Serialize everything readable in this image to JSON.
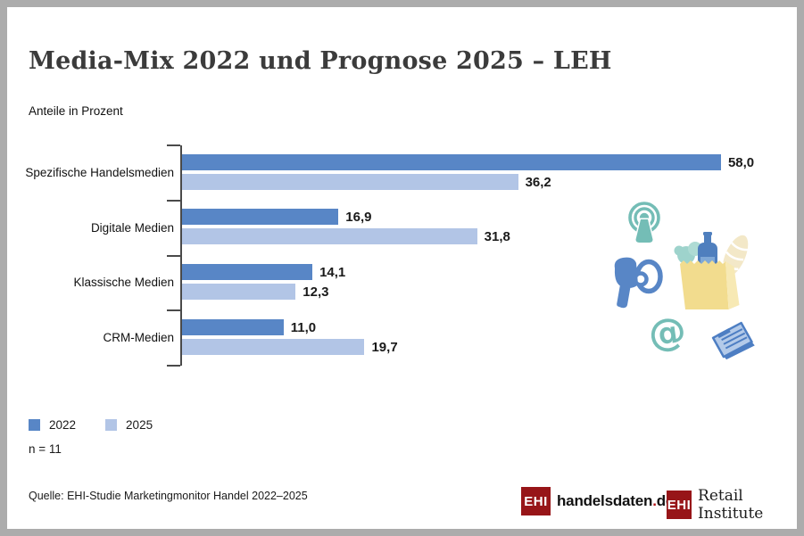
{
  "page": {
    "title": "Media-Mix 2022 und Prognose 2025 – LEH",
    "subtitle": "Anteile in Prozent",
    "sample_note": "n = 11",
    "source": "Quelle: EHI-Studie Marketingmonitor Handel 2022–2025"
  },
  "chart_data": {
    "type": "bar",
    "orientation": "horizontal",
    "title": "Media-Mix 2022 und Prognose 2025 – LEH",
    "xlabel": "",
    "ylabel": "Anteile in Prozent",
    "xlim": [
      0,
      60
    ],
    "grid": false,
    "legend_position": "bottom-left",
    "categories": [
      "Spezifische Handelsmedien",
      "Digitale Medien",
      "Klassische Medien",
      "CRM-Medien"
    ],
    "series": [
      {
        "name": "2022",
        "color": "#5886C6",
        "values": [
          58.0,
          16.9,
          14.1,
          11.0
        ],
        "labels": [
          "58,0",
          "16,9",
          "14,1",
          "11,0"
        ]
      },
      {
        "name": "2025",
        "color": "#B2C5E6",
        "values": [
          36.2,
          31.8,
          12.3,
          19.7
        ],
        "labels": [
          "36,2",
          "31,8",
          "12,3",
          "19,7"
        ]
      }
    ]
  },
  "decoration": {
    "icons": [
      "broadcast-tower-icon",
      "megaphone-icon",
      "shopping-bag-icon",
      "at-sign-icon",
      "newspaper-icon"
    ],
    "at_glyph": "@"
  },
  "logos": {
    "handelsdaten": {
      "ehi": "EHI",
      "text": "handelsdaten",
      "dot": ".",
      "tld": "de"
    },
    "retail_institute": {
      "ehi": "EHI",
      "text": "Retail Institute",
      "registered": "®"
    }
  },
  "colors": {
    "series_2022": "#5886C6",
    "series_2025": "#B2C5E6",
    "accent_teal": "#74BDB6",
    "accent_yellow": "#F2DC8E",
    "accent_cream": "#F3E8C8",
    "logo_red": "#971518",
    "frame_gray": "#ACACAC"
  }
}
